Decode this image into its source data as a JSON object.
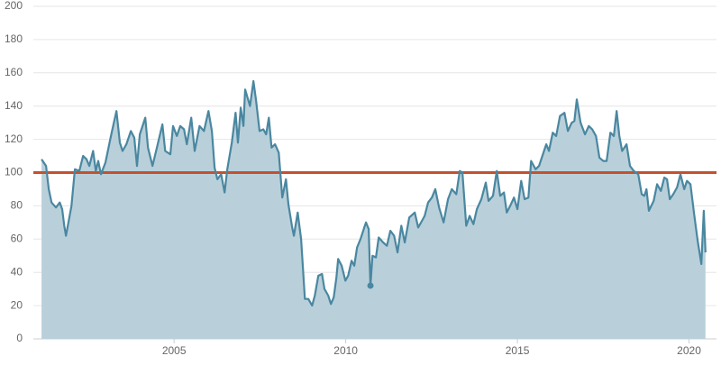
{
  "chart_data": {
    "type": "area",
    "x": [
      2001.14,
      2001.27,
      2001.35,
      2001.43,
      2001.56,
      2001.67,
      2001.74,
      2001.8,
      2001.85,
      2002.01,
      2002.11,
      2002.24,
      2002.35,
      2002.45,
      2002.53,
      2002.64,
      2002.72,
      2002.79,
      2002.87,
      2003.0,
      2003.16,
      2003.32,
      2003.42,
      2003.5,
      2003.61,
      2003.74,
      2003.84,
      2003.92,
      2004.0,
      2004.16,
      2004.24,
      2004.37,
      2004.5,
      2004.66,
      2004.74,
      2004.89,
      2004.97,
      2005.08,
      2005.18,
      2005.29,
      2005.37,
      2005.5,
      2005.6,
      2005.74,
      2005.87,
      2006.0,
      2006.1,
      2006.18,
      2006.26,
      2006.37,
      2006.47,
      2006.55,
      2006.68,
      2006.79,
      2006.86,
      2006.94,
      2007.02,
      2007.07,
      2007.21,
      2007.31,
      2007.39,
      2007.49,
      2007.6,
      2007.68,
      2007.76,
      2007.84,
      2007.94,
      2008.05,
      2008.15,
      2008.26,
      2008.33,
      2008.44,
      2008.49,
      2008.6,
      2008.7,
      2008.81,
      2008.91,
      2009.02,
      2009.1,
      2009.2,
      2009.31,
      2009.38,
      2009.49,
      2009.57,
      2009.65,
      2009.73,
      2009.78,
      2009.88,
      2009.99,
      2010.07,
      2010.17,
      2010.25,
      2010.33,
      2010.43,
      2010.54,
      2010.59,
      2010.67,
      2010.72,
      2010.78,
      2010.88,
      2010.96,
      2011.09,
      2011.2,
      2011.3,
      2011.41,
      2011.51,
      2011.62,
      2011.72,
      2011.85,
      2012.01,
      2012.11,
      2012.22,
      2012.3,
      2012.4,
      2012.51,
      2012.61,
      2012.72,
      2012.85,
      2012.98,
      2013.09,
      2013.22,
      2013.32,
      2013.4,
      2013.51,
      2013.61,
      2013.72,
      2013.82,
      2013.95,
      2014.08,
      2014.16,
      2014.29,
      2014.4,
      2014.5,
      2014.61,
      2014.69,
      2014.79,
      2014.9,
      2015.0,
      2015.11,
      2015.21,
      2015.32,
      2015.4,
      2015.53,
      2015.63,
      2015.76,
      2015.84,
      2015.92,
      2016.03,
      2016.13,
      2016.24,
      2016.37,
      2016.47,
      2016.58,
      2016.66,
      2016.73,
      2016.84,
      2016.97,
      2017.08,
      2017.18,
      2017.29,
      2017.39,
      2017.5,
      2017.6,
      2017.71,
      2017.81,
      2017.89,
      2017.97,
      2018.05,
      2018.18,
      2018.28,
      2018.39,
      2018.52,
      2018.62,
      2018.7,
      2018.76,
      2018.83,
      2018.97,
      2019.07,
      2019.18,
      2019.28,
      2019.36,
      2019.44,
      2019.54,
      2019.65,
      2019.75,
      2019.86,
      2019.94,
      2020.04,
      2020.15,
      2020.25,
      2020.36,
      2020.43,
      2020.48
    ],
    "series": [
      {
        "color": "#4a87a0",
        "fill": "#b9d0da",
        "values": [
          108,
          104,
          90,
          82,
          79,
          82,
          78,
          68,
          62,
          80,
          102,
          101,
          110,
          108,
          104,
          113,
          101,
          107,
          99,
          106,
          122,
          137,
          118,
          113,
          117,
          125,
          121,
          104,
          123,
          133,
          115,
          104,
          115,
          129,
          113,
          111,
          128,
          122,
          128,
          126,
          117,
          133,
          113,
          128,
          125,
          137,
          125,
          103,
          96,
          99,
          88,
          102,
          118,
          136,
          118,
          139,
          128,
          150,
          140,
          155,
          143,
          125,
          126,
          123,
          133,
          115,
          117,
          112,
          85,
          96,
          81,
          67,
          62,
          76,
          60,
          24,
          24,
          20,
          26,
          38,
          39,
          30,
          26,
          21,
          25,
          37,
          48,
          44,
          35,
          38,
          47,
          44,
          55,
          60,
          67,
          70,
          66,
          32,
          50,
          49,
          61,
          58,
          56,
          65,
          62,
          52,
          68,
          58,
          73,
          76,
          67,
          71,
          74,
          82,
          85,
          90,
          79,
          70,
          84,
          90,
          87,
          101,
          100,
          68,
          74,
          69,
          78,
          84,
          94,
          83,
          86,
          101,
          86,
          88,
          76,
          80,
          85,
          78,
          95,
          84,
          85,
          107,
          102,
          104,
          112,
          117,
          113,
          124,
          122,
          134,
          136,
          125,
          130,
          131,
          144,
          130,
          123,
          128,
          126,
          122,
          109,
          107,
          107,
          124,
          122,
          137,
          122,
          113,
          117,
          104,
          101,
          99,
          87,
          86,
          90,
          77,
          83,
          93,
          89,
          97,
          96,
          84,
          87,
          91,
          99,
          90,
          95,
          93,
          75,
          59,
          45,
          77,
          52
        ]
      }
    ],
    "marker_index": 97,
    "reference_line": {
      "value": 100,
      "color": "#c4512f"
    },
    "xlim": [
      2000.9,
      2020.8
    ],
    "xticks": [
      2005,
      2010,
      2015,
      2020
    ],
    "ylim": [
      0,
      200
    ],
    "yticks": [
      0,
      20,
      40,
      60,
      80,
      100,
      120,
      140,
      160,
      180,
      200
    ],
    "grid": true
  }
}
